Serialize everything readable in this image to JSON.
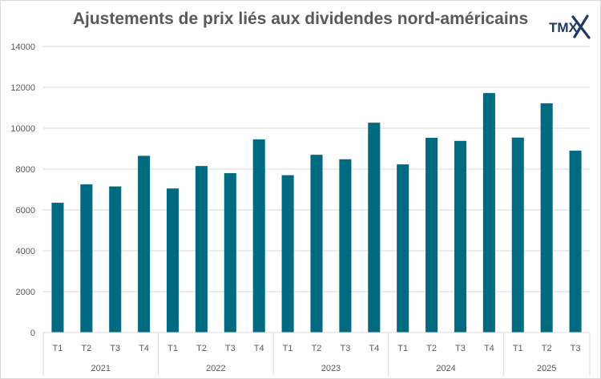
{
  "header": {
    "title": "Ajustements de prix liés aux dividendes nord-américains",
    "logo_text": "TMX"
  },
  "chart_data": {
    "type": "bar",
    "title": "Ajustements de prix liés aux dividendes nord-américains",
    "xlabel": "",
    "ylabel": "",
    "ylim": [
      0,
      14000
    ],
    "yticks": [
      0,
      2000,
      4000,
      6000,
      8000,
      10000,
      12000,
      14000
    ],
    "grid": true,
    "legend": "none",
    "bar_color": "#006A80",
    "categories": [
      {
        "quarter": "T1",
        "year": "2021"
      },
      {
        "quarter": "T2",
        "year": "2021"
      },
      {
        "quarter": "T3",
        "year": "2021"
      },
      {
        "quarter": "T4",
        "year": "2021"
      },
      {
        "quarter": "T1",
        "year": "2022"
      },
      {
        "quarter": "T2",
        "year": "2022"
      },
      {
        "quarter": "T3",
        "year": "2022"
      },
      {
        "quarter": "T4",
        "year": "2022"
      },
      {
        "quarter": "T1",
        "year": "2023"
      },
      {
        "quarter": "T2",
        "year": "2023"
      },
      {
        "quarter": "T3",
        "year": "2023"
      },
      {
        "quarter": "T4",
        "year": "2023"
      },
      {
        "quarter": "T1",
        "year": "2024"
      },
      {
        "quarter": "T2",
        "year": "2024"
      },
      {
        "quarter": "T3",
        "year": "2024"
      },
      {
        "quarter": "T4",
        "year": "2024"
      },
      {
        "quarter": "T1",
        "year": "2025"
      },
      {
        "quarter": "T2",
        "year": "2025"
      },
      {
        "quarter": "T3",
        "year": "2025"
      }
    ],
    "years": [
      "2021",
      "2022",
      "2023",
      "2024",
      "2025"
    ],
    "values": [
      6350,
      7250,
      7150,
      8650,
      7050,
      8150,
      7800,
      9450,
      7700,
      8700,
      8480,
      10270,
      8230,
      9530,
      9380,
      11720,
      9540,
      11220,
      8900
    ]
  }
}
